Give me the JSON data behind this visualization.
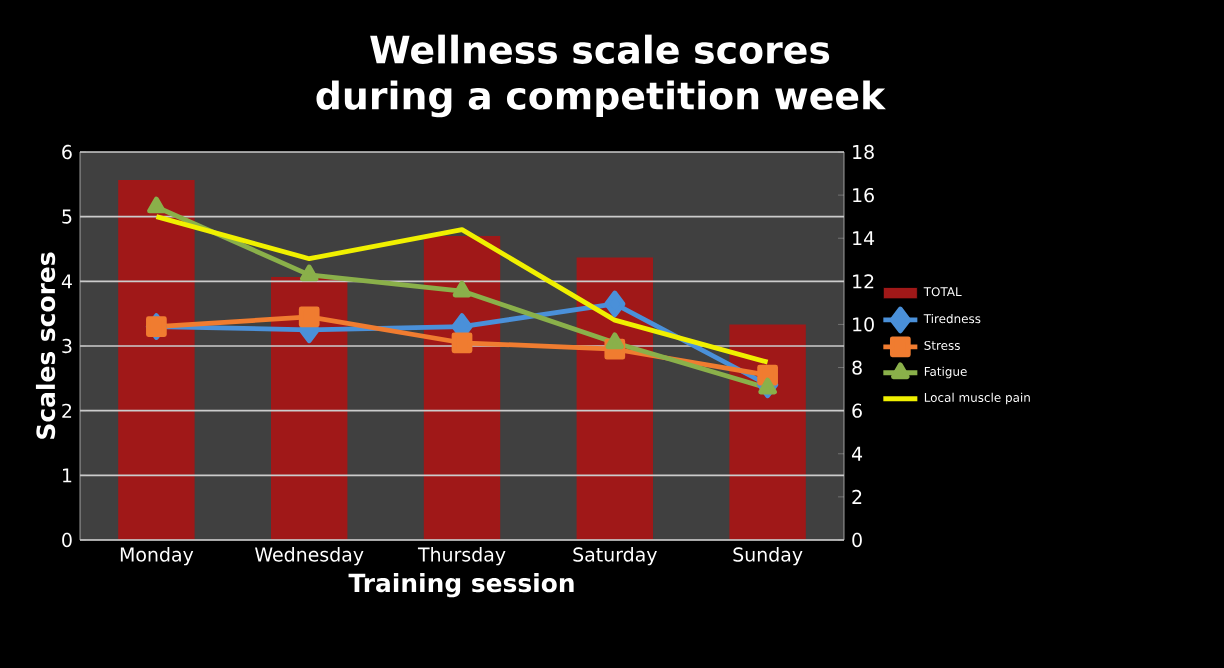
{
  "chart_data": {
    "type": "line",
    "title": "Wellness scale scores during a competition week",
    "xlabel": "Training session",
    "ylabel": "Scales scores",
    "categories": [
      "Monday",
      "Wednesday",
      "Thursday",
      "Saturday",
      "Sunday"
    ],
    "series": [
      {
        "name": "TOTAL",
        "type": "bar",
        "axis": "y2",
        "color": "#a01818",
        "values": [
          16.7,
          12.2,
          14.1,
          13.1,
          10.0
        ]
      },
      {
        "name": "Tiredness",
        "color": "#4a90d9",
        "marker": "diamond",
        "values": [
          3.3,
          3.25,
          3.3,
          3.65,
          2.4
        ]
      },
      {
        "name": "Stress",
        "color": "#f07c30",
        "marker": "square",
        "values": [
          3.3,
          3.45,
          3.05,
          2.95,
          2.55
        ]
      },
      {
        "name": "Fatigue",
        "color": "#8ab04a",
        "marker": "triangle",
        "values": [
          5.15,
          4.1,
          3.85,
          3.05,
          2.35
        ]
      },
      {
        "name": "Local muscle pain",
        "color": "#f0f000",
        "marker": "none",
        "values": [
          5.0,
          4.35,
          4.8,
          3.4,
          2.75
        ]
      }
    ],
    "ylim": [
      0,
      6
    ],
    "yticks": [
      0,
      1,
      2,
      3,
      4,
      5,
      6
    ],
    "y2lim": [
      0,
      18
    ],
    "y2ticks": [
      0,
      2,
      4,
      6,
      8,
      10,
      12,
      14,
      16,
      18
    ],
    "grid": "y",
    "legend": "right"
  }
}
